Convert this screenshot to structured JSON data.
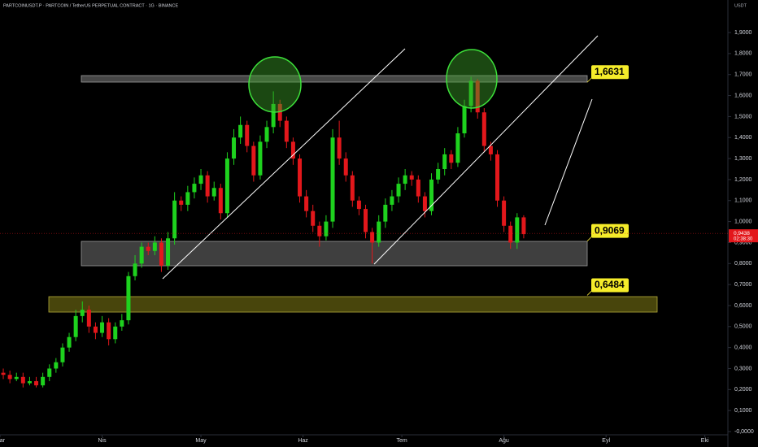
{
  "chart_data": {
    "type": "candlestick",
    "title": "PARTCOINUSDT.P · PARTCOIN / TetherUS PERPETUAL CONTRACT · 1G · BINANCE",
    "currency": "USDT",
    "up_color": "#1ed21e",
    "down_color": "#e3171b",
    "x": [
      1,
      3,
      5,
      7,
      9,
      11,
      13,
      15,
      17,
      19,
      21,
      23,
      25,
      27,
      29,
      31,
      33,
      35,
      37,
      39,
      41,
      43,
      45,
      47,
      49,
      51,
      53,
      55,
      57,
      59,
      61,
      63,
      65,
      67,
      69,
      71,
      73,
      75,
      77,
      79,
      81,
      83,
      85,
      87,
      89,
      91,
      93,
      95,
      97,
      99,
      101,
      103,
      105,
      107,
      109,
      111,
      113,
      115,
      117,
      119,
      121,
      123,
      125,
      127,
      129,
      131,
      133,
      135,
      137,
      139,
      141,
      143,
      145,
      147,
      149,
      151,
      153,
      155,
      157,
      159
    ],
    "open": [
      0.28,
      0.27,
      0.25,
      0.26,
      0.23,
      0.24,
      0.22,
      0.26,
      0.3,
      0.33,
      0.4,
      0.45,
      0.55,
      0.58,
      0.5,
      0.47,
      0.52,
      0.44,
      0.5,
      0.53,
      0.74,
      0.8,
      0.88,
      0.86,
      0.9,
      0.79,
      0.92,
      1.1,
      1.08,
      1.14,
      1.18,
      1.22,
      1.12,
      1.16,
      1.04,
      1.3,
      1.4,
      1.46,
      1.36,
      1.22,
      1.38,
      1.45,
      1.56,
      1.48,
      1.38,
      1.3,
      1.12,
      1.05,
      0.98,
      0.93,
      1.0,
      1.4,
      1.3,
      1.22,
      1.1,
      1.06,
      0.95,
      0.9,
      1.0,
      1.08,
      1.12,
      1.18,
      1.22,
      1.2,
      1.12,
      1.05,
      1.2,
      1.25,
      1.32,
      1.28,
      1.42,
      1.55,
      1.67,
      1.52,
      1.36,
      1.32,
      1.1,
      0.98,
      0.9,
      1.02
    ],
    "high": [
      0.3,
      0.29,
      0.28,
      0.28,
      0.26,
      0.26,
      0.28,
      0.32,
      0.35,
      0.42,
      0.47,
      0.58,
      0.62,
      0.6,
      0.52,
      0.55,
      0.54,
      0.52,
      0.56,
      0.76,
      0.84,
      0.9,
      0.9,
      0.93,
      0.92,
      0.95,
      1.14,
      1.12,
      1.17,
      1.21,
      1.25,
      1.24,
      1.19,
      1.18,
      1.33,
      1.44,
      1.5,
      1.48,
      1.38,
      1.41,
      1.48,
      1.62,
      1.58,
      1.5,
      1.4,
      1.32,
      1.15,
      1.08,
      1.0,
      1.03,
      1.44,
      1.48,
      1.33,
      1.24,
      1.12,
      1.08,
      0.97,
      1.03,
      1.11,
      1.15,
      1.21,
      1.25,
      1.24,
      1.22,
      1.14,
      1.23,
      1.28,
      1.35,
      1.34,
      1.45,
      1.58,
      1.69,
      1.68,
      1.54,
      1.38,
      1.34,
      1.12,
      1.0,
      1.04,
      1.03
    ],
    "low": [
      0.25,
      0.23,
      0.24,
      0.21,
      0.22,
      0.21,
      0.21,
      0.24,
      0.28,
      0.31,
      0.38,
      0.43,
      0.52,
      0.47,
      0.44,
      0.45,
      0.41,
      0.42,
      0.48,
      0.51,
      0.72,
      0.78,
      0.84,
      0.84,
      0.76,
      0.77,
      0.89,
      1.05,
      1.05,
      1.11,
      1.15,
      1.09,
      1.1,
      1.01,
      1.02,
      1.27,
      1.37,
      1.33,
      1.19,
      1.2,
      1.35,
      1.42,
      1.45,
      1.35,
      1.27,
      1.09,
      1.02,
      0.95,
      0.88,
      0.91,
      0.97,
      1.27,
      1.19,
      1.07,
      1.03,
      0.92,
      0.8,
      0.88,
      0.97,
      1.05,
      1.09,
      1.15,
      1.17,
      1.09,
      1.02,
      1.03,
      1.18,
      1.22,
      1.25,
      1.26,
      1.4,
      1.52,
      1.49,
      1.33,
      1.29,
      1.07,
      0.95,
      0.87,
      0.87,
      0.92
    ],
    "close": [
      0.27,
      0.25,
      0.26,
      0.23,
      0.24,
      0.22,
      0.26,
      0.3,
      0.33,
      0.4,
      0.45,
      0.55,
      0.58,
      0.5,
      0.47,
      0.52,
      0.44,
      0.5,
      0.53,
      0.74,
      0.8,
      0.88,
      0.86,
      0.9,
      0.79,
      0.92,
      1.1,
      1.08,
      1.14,
      1.18,
      1.22,
      1.12,
      1.16,
      1.04,
      1.3,
      1.4,
      1.46,
      1.36,
      1.22,
      1.38,
      1.45,
      1.56,
      1.48,
      1.38,
      1.3,
      1.12,
      1.05,
      0.98,
      0.93,
      1.0,
      1.4,
      1.3,
      1.22,
      1.1,
      1.06,
      0.95,
      0.9,
      1.0,
      1.08,
      1.12,
      1.18,
      1.22,
      1.2,
      1.12,
      1.05,
      1.2,
      1.25,
      1.32,
      1.28,
      1.42,
      1.55,
      1.67,
      1.52,
      1.36,
      1.32,
      1.1,
      0.98,
      0.9,
      1.02,
      0.94
    ],
    "xlim": [
      0,
      221
    ],
    "xticks": [
      {
        "value": 0,
        "label": "Mar"
      },
      {
        "value": 31,
        "label": "Nis"
      },
      {
        "value": 61,
        "label": "May"
      },
      {
        "value": 92,
        "label": "Haz"
      },
      {
        "value": 122,
        "label": "Tem"
      },
      {
        "value": 153,
        "label": "Ağu"
      },
      {
        "value": 184,
        "label": "Eyl"
      },
      {
        "value": 214,
        "label": "Eki"
      }
    ],
    "ylim": [
      -0.0155,
      2.055
    ],
    "yticks": [
      {
        "value": 0,
        "label": "-0,0000"
      },
      {
        "value": 0.1,
        "label": "0,1000"
      },
      {
        "value": 0.2,
        "label": "0,2000"
      },
      {
        "value": 0.3,
        "label": "0,3000"
      },
      {
        "value": 0.4,
        "label": "0,4000"
      },
      {
        "value": 0.5,
        "label": "0,5000"
      },
      {
        "value": 0.6,
        "label": "0,6000"
      },
      {
        "value": 0.7,
        "label": "0,7000"
      },
      {
        "value": 0.8,
        "label": "0,8000"
      },
      {
        "value": 0.9,
        "label": "0,9000"
      },
      {
        "value": 1,
        "label": "1,0000"
      },
      {
        "value": 1.1,
        "label": "1,1000"
      },
      {
        "value": 1.2,
        "label": "1,2000"
      },
      {
        "value": 1.3,
        "label": "1,3000"
      },
      {
        "value": 1.4,
        "label": "1,4000"
      },
      {
        "value": 1.5,
        "label": "1,5000"
      },
      {
        "value": 1.6,
        "label": "1,6000"
      },
      {
        "value": 1.7,
        "label": "1,7000"
      },
      {
        "value": 1.8,
        "label": "1,8000"
      },
      {
        "value": 1.9,
        "label": "1,9000"
      }
    ],
    "levels": [
      {
        "value": 1.6631,
        "label": "1,6631"
      },
      {
        "value": 0.9069,
        "label": "0,9069"
      },
      {
        "value": 0.6484,
        "label": "0,6484"
      }
    ],
    "last_price": {
      "value": 0.9438,
      "label": "0,9438"
    },
    "countdown": "02:38:30"
  }
}
